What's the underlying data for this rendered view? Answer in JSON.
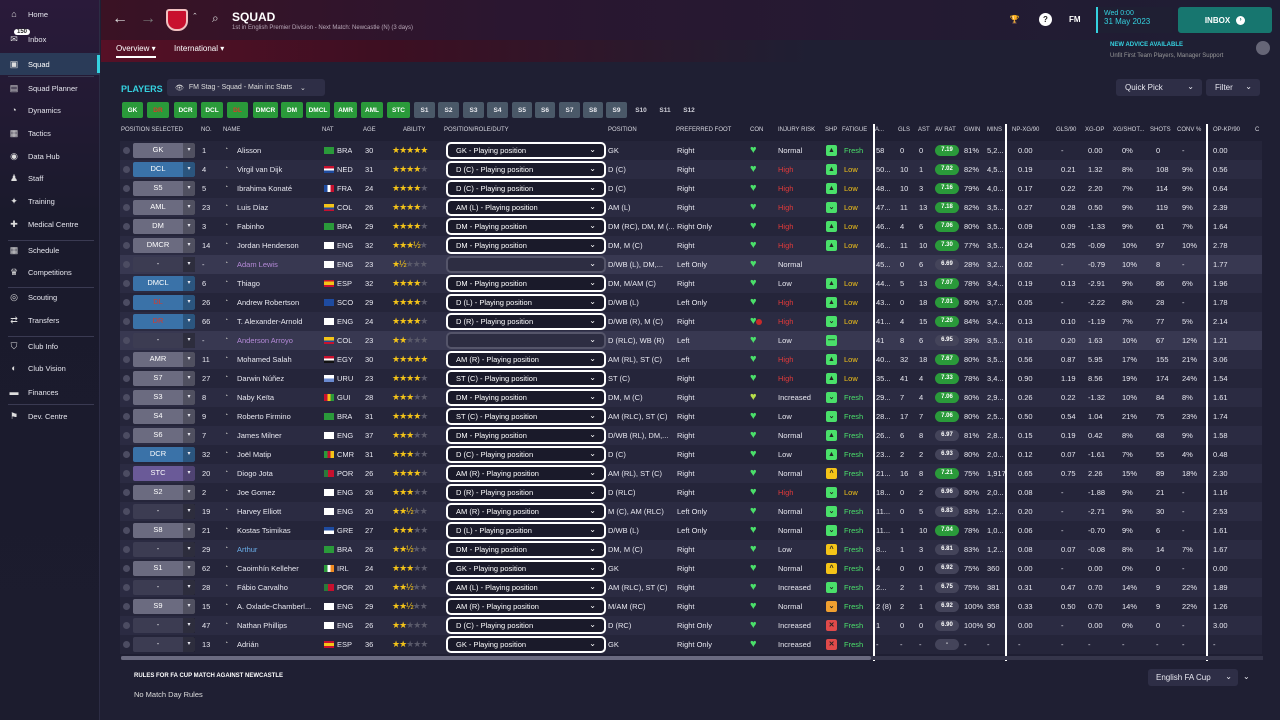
{
  "sidebar": {
    "items": [
      {
        "label": "Home",
        "icon": "home-icon"
      },
      {
        "label": "Inbox",
        "icon": "inbox-icon",
        "badge": "150"
      },
      {
        "label": "Squad",
        "icon": "shirt-icon",
        "active": true
      },
      {
        "label": "Squad Planner",
        "icon": "planner-icon"
      },
      {
        "label": "Dynamics",
        "icon": "dynamics-icon"
      },
      {
        "label": "Tactics",
        "icon": "tactics-icon"
      },
      {
        "label": "Data Hub",
        "icon": "datahub-icon"
      },
      {
        "label": "Staff",
        "icon": "staff-icon"
      },
      {
        "label": "Training",
        "icon": "training-icon"
      },
      {
        "label": "Medical Centre",
        "icon": "medical-icon"
      },
      {
        "label": "Schedule",
        "icon": "calendar-icon"
      },
      {
        "label": "Competitions",
        "icon": "trophy-icon"
      },
      {
        "label": "Scouting",
        "icon": "scouting-icon"
      },
      {
        "label": "Transfers",
        "icon": "transfers-icon"
      },
      {
        "label": "Club Info",
        "icon": "shield-icon"
      },
      {
        "label": "Club Vision",
        "icon": "vision-icon"
      },
      {
        "label": "Finances",
        "icon": "finances-icon"
      },
      {
        "label": "Dev. Centre",
        "icon": "devcentre-icon"
      }
    ]
  },
  "header": {
    "title": "SQUAD",
    "subtitle": "1st in English Premier Division - Next Match: Newcastle (N) (3 days)",
    "date_line1": "Wed 0:00",
    "date_line2": "31 May 2023",
    "inbox_label": "INBOX",
    "fm_label": "FM",
    "advice_title": "NEW ADVICE AVAILABLE",
    "advice_text": "Unfit First Team Players, Manager Support"
  },
  "tabs": [
    {
      "label": "Overview"
    },
    {
      "label": "International"
    }
  ],
  "toolbar": {
    "players_label": "PLAYERS",
    "view_label": "FM Stag - Squad - Main inc Stats",
    "quick_pick": "Quick Pick",
    "filter": "Filter"
  },
  "chips": [
    "GK",
    "DR",
    "DCR",
    "DCL",
    "DL",
    "DMCR",
    "DM",
    "DMCL",
    "AMR",
    "AML",
    "STC",
    "S1",
    "S2",
    "S3",
    "S4",
    "S5",
    "S6",
    "S7",
    "S8",
    "S9",
    "S10",
    "S11",
    "S12"
  ],
  "columns": [
    "POSITION SELECTED",
    "NO.",
    "NAME",
    "NAT",
    "AGE",
    "ABILITY",
    "POSITION/ROLE/DUTY",
    "POSITION",
    "PREFERRED FOOT",
    "CON",
    "INJURY RISK",
    "SHP",
    "FATIGUE",
    "A...",
    "GLS",
    "AST",
    "AV RAT",
    "GWIN",
    "MINS",
    "NP-XG/90",
    "GLS/90",
    "XG-OP",
    "XG/SHOT...",
    "SHOTS",
    "CONV %",
    "OP-KP/90",
    "C"
  ],
  "players": [
    {
      "sel": "GK",
      "no": "1",
      "name": "Alisson",
      "nat": "BRA",
      "age": "30",
      "stars": "★★★★★",
      "empty": "",
      "role": "GK - Playing position",
      "pos": "GK",
      "foot": "Right",
      "risk": "Normal",
      "fatigue": "Fresh",
      "apps": "58",
      "gls": "0",
      "ast": "0",
      "rat": "7.19",
      "gwin": "81%",
      "mins": "5,2...",
      "npxg": "0.00",
      "gls90": "-",
      "xgop": "0.00",
      "xgshot": "0%",
      "shots": "0",
      "conv": "-",
      "opkp": "0.00"
    },
    {
      "sel": "DCL",
      "no": "4",
      "name": "Virgil van Dijk",
      "nat": "NED",
      "age": "31",
      "stars": "★★★★",
      "empty": "★",
      "role": "D (C) - Playing position",
      "pos": "D (C)",
      "foot": "Right",
      "risk": "High",
      "fatigue": "Low",
      "apps": "50...",
      "gls": "10",
      "ast": "1",
      "rat": "7.02",
      "gwin": "82%",
      "mins": "4,5...",
      "npxg": "0.19",
      "gls90": "0.21",
      "xgop": "1.32",
      "xgshot": "8%",
      "shots": "108",
      "conv": "9%",
      "opkp": "0.56"
    },
    {
      "sel": "S5",
      "no": "5",
      "name": "Ibrahima Konaté",
      "nat": "FRA",
      "age": "24",
      "stars": "★★★★",
      "empty": "★",
      "role": "D (C) - Playing position",
      "pos": "D (C)",
      "foot": "Right",
      "risk": "High",
      "fatigue": "Low",
      "apps": "48...",
      "gls": "10",
      "ast": "3",
      "rat": "7.16",
      "gwin": "79%",
      "mins": "4,0...",
      "npxg": "0.17",
      "gls90": "0.22",
      "xgop": "2.20",
      "xgshot": "7%",
      "shots": "114",
      "conv": "9%",
      "opkp": "0.64"
    },
    {
      "sel": "AML",
      "no": "23",
      "name": "Luis Díaz",
      "nat": "COL",
      "age": "26",
      "stars": "★★★★",
      "empty": "★",
      "role": "AM (L) - Playing position",
      "pos": "AM (L)",
      "foot": "Right",
      "risk": "High",
      "fatigue": "Low",
      "apps": "47...",
      "gls": "11",
      "ast": "13",
      "rat": "7.18",
      "gwin": "82%",
      "mins": "3,5...",
      "npxg": "0.27",
      "gls90": "0.28",
      "xgop": "0.50",
      "xgshot": "9%",
      "shots": "119",
      "conv": "9%",
      "opkp": "2.39"
    },
    {
      "sel": "DM",
      "no": "3",
      "name": "Fabinho",
      "nat": "BRA",
      "age": "29",
      "stars": "★★★★",
      "empty": "★",
      "role": "DM - Playing position",
      "pos": "DM (RC), DM, M (...",
      "foot": "Right Only",
      "risk": "High",
      "fatigue": "Low",
      "apps": "46...",
      "gls": "4",
      "ast": "6",
      "rat": "7.06",
      "gwin": "80%",
      "mins": "3,5...",
      "npxg": "0.09",
      "gls90": "0.09",
      "xgop": "-1.33",
      "xgshot": "9%",
      "shots": "61",
      "conv": "7%",
      "opkp": "1.64"
    },
    {
      "sel": "DMCR",
      "no": "14",
      "name": "Jordan Henderson",
      "nat": "ENG",
      "age": "32",
      "stars": "★★★½",
      "empty": "★",
      "role": "DM - Playing position",
      "pos": "DM, M (C)",
      "foot": "Right",
      "risk": "High",
      "fatigue": "Low",
      "apps": "46...",
      "gls": "11",
      "ast": "10",
      "rat": "7.30",
      "gwin": "77%",
      "mins": "3,5...",
      "npxg": "0.24",
      "gls90": "0.25",
      "xgop": "-0.09",
      "xgshot": "10%",
      "shots": "97",
      "conv": "10%",
      "opkp": "2.78"
    },
    {
      "sel": "-",
      "no": "-",
      "name": "Adam Lewis",
      "nat": "ENG",
      "age": "23",
      "stars": "★½",
      "empty": "★★★",
      "role": "",
      "pos": "D/WB (L), DM,...",
      "foot": "Left Only",
      "risk": "Normal",
      "fatigue": "",
      "apps": "45...",
      "gls": "0",
      "ast": "6",
      "rat": "6.69",
      "gwin": "28%",
      "mins": "3,2...",
      "npxg": "0.02",
      "gls90": "-",
      "xgop": "-0.79",
      "xgshot": "10%",
      "shots": "8",
      "conv": "-",
      "opkp": "1.77"
    },
    {
      "sel": "DMCL",
      "no": "6",
      "name": "Thiago",
      "nat": "ESP",
      "age": "32",
      "stars": "★★★★",
      "empty": "★",
      "role": "DM - Playing position",
      "pos": "DM, M/AM (C)",
      "foot": "Right",
      "risk": "Low",
      "fatigue": "Low",
      "apps": "44...",
      "gls": "5",
      "ast": "13",
      "rat": "7.07",
      "gwin": "78%",
      "mins": "3,4...",
      "npxg": "0.19",
      "gls90": "0.13",
      "xgop": "-2.91",
      "xgshot": "9%",
      "shots": "86",
      "conv": "6%",
      "opkp": "1.96"
    },
    {
      "sel": "DL",
      "no": "26",
      "name": "Andrew Robertson",
      "nat": "SCO",
      "age": "29",
      "stars": "★★★★",
      "empty": "★",
      "role": "D (L) - Playing position",
      "pos": "D/WB (L)",
      "foot": "Left Only",
      "risk": "High",
      "fatigue": "Low",
      "apps": "43...",
      "gls": "0",
      "ast": "18",
      "rat": "7.01",
      "gwin": "80%",
      "mins": "3,7...",
      "npxg": "0.05",
      "gls90": "-",
      "xgop": "-2.22",
      "xgshot": "8%",
      "shots": "28",
      "conv": "-",
      "opkp": "1.78"
    },
    {
      "sel": "DR",
      "no": "66",
      "name": "T. Alexander-Arnold",
      "nat": "ENG",
      "age": "24",
      "stars": "★★★★",
      "empty": "★",
      "role": "D (R) - Playing position",
      "pos": "D/WB (R), M (C)",
      "foot": "Right",
      "risk": "High",
      "fatigue": "Low",
      "apps": "41...",
      "gls": "4",
      "ast": "15",
      "rat": "7.20",
      "gwin": "84%",
      "mins": "3,4...",
      "npxg": "0.13",
      "gls90": "0.10",
      "xgop": "-1.19",
      "xgshot": "7%",
      "shots": "77",
      "conv": "5%",
      "opkp": "2.14"
    },
    {
      "sel": "-",
      "no": "-",
      "name": "Anderson Arroyo",
      "nat": "COL",
      "age": "23",
      "stars": "★★",
      "empty": "★★★",
      "role": "",
      "pos": "D (RLC), WB (R)",
      "foot": "Left",
      "risk": "Low",
      "fatigue": "",
      "apps": "41",
      "gls": "8",
      "ast": "6",
      "rat": "6.95",
      "gwin": "39%",
      "mins": "3,5...",
      "npxg": "0.16",
      "gls90": "0.20",
      "xgop": "1.63",
      "xgshot": "10%",
      "shots": "67",
      "conv": "12%",
      "opkp": "1.21"
    },
    {
      "sel": "AMR",
      "no": "11",
      "name": "Mohamed Salah",
      "nat": "EGY",
      "age": "30",
      "stars": "★★★★★",
      "empty": "",
      "role": "AM (R) - Playing position",
      "pos": "AM (RL), ST (C)",
      "foot": "Left",
      "risk": "High",
      "fatigue": "Low",
      "apps": "40...",
      "gls": "32",
      "ast": "18",
      "rat": "7.67",
      "gwin": "80%",
      "mins": "3,5...",
      "npxg": "0.56",
      "gls90": "0.87",
      "xgop": "5.95",
      "xgshot": "17%",
      "shots": "155",
      "conv": "21%",
      "opkp": "3.06"
    },
    {
      "sel": "S7",
      "no": "27",
      "name": "Darwin Núñez",
      "nat": "URU",
      "age": "23",
      "stars": "★★★★",
      "empty": "★",
      "role": "ST (C) - Playing position",
      "pos": "ST (C)",
      "foot": "Right",
      "risk": "High",
      "fatigue": "Low",
      "apps": "35...",
      "gls": "41",
      "ast": "4",
      "rat": "7.33",
      "gwin": "78%",
      "mins": "3,4...",
      "npxg": "0.90",
      "gls90": "1.19",
      "xgop": "8.56",
      "xgshot": "19%",
      "shots": "174",
      "conv": "24%",
      "opkp": "1.54"
    },
    {
      "sel": "S3",
      "no": "8",
      "name": "Naby Keïta",
      "nat": "GUI",
      "age": "28",
      "stars": "★★★",
      "empty": "★★",
      "role": "DM - Playing position",
      "pos": "DM, M (C)",
      "foot": "Right",
      "risk": "Increased",
      "fatigue": "Fresh",
      "apps": "29...",
      "gls": "7",
      "ast": "4",
      "rat": "7.06",
      "gwin": "80%",
      "mins": "2,9...",
      "npxg": "0.26",
      "gls90": "0.22",
      "xgop": "-1.32",
      "xgshot": "10%",
      "shots": "84",
      "conv": "8%",
      "opkp": "1.61"
    },
    {
      "sel": "S4",
      "no": "9",
      "name": "Roberto Firmino",
      "nat": "BRA",
      "age": "31",
      "stars": "★★★★",
      "empty": "★",
      "role": "ST (C) - Playing position",
      "pos": "AM (RLC), ST (C)",
      "foot": "Right",
      "risk": "Low",
      "fatigue": "Fresh",
      "apps": "28...",
      "gls": "17",
      "ast": "7",
      "rat": "7.06",
      "gwin": "80%",
      "mins": "2,5...",
      "npxg": "0.50",
      "gls90": "0.54",
      "xgop": "1.04",
      "xgshot": "21%",
      "shots": "75",
      "conv": "23%",
      "opkp": "1.74"
    },
    {
      "sel": "S6",
      "no": "7",
      "name": "James Milner",
      "nat": "ENG",
      "age": "37",
      "stars": "★★★",
      "empty": "★★",
      "role": "DM - Playing position",
      "pos": "D/WB (RL), DM,...",
      "foot": "Right",
      "risk": "Normal",
      "fatigue": "Fresh",
      "apps": "26...",
      "gls": "6",
      "ast": "8",
      "rat": "6.97",
      "gwin": "81%",
      "mins": "2,8...",
      "npxg": "0.15",
      "gls90": "0.19",
      "xgop": "0.42",
      "xgshot": "8%",
      "shots": "68",
      "conv": "9%",
      "opkp": "1.58"
    },
    {
      "sel": "DCR",
      "no": "32",
      "name": "Joël Matip",
      "nat": "CMR",
      "age": "31",
      "stars": "★★★",
      "empty": "★★",
      "role": "D (C) - Playing position",
      "pos": "D (C)",
      "foot": "Right",
      "risk": "Low",
      "fatigue": "Fresh",
      "apps": "23...",
      "gls": "2",
      "ast": "2",
      "rat": "6.93",
      "gwin": "80%",
      "mins": "2,0...",
      "npxg": "0.12",
      "gls90": "0.07",
      "xgop": "-1.61",
      "xgshot": "7%",
      "shots": "55",
      "conv": "4%",
      "opkp": "0.48"
    },
    {
      "sel": "STC",
      "no": "20",
      "name": "Diogo Jota",
      "nat": "POR",
      "age": "26",
      "stars": "★★★★",
      "empty": "★",
      "role": "AM (R) - Playing position",
      "pos": "AM (RL), ST (C)",
      "foot": "Right",
      "risk": "Normal",
      "fatigue": "Fresh",
      "apps": "21...",
      "gls": "16",
      "ast": "8",
      "rat": "7.21",
      "gwin": "75%",
      "mins": "1,917",
      "npxg": "0.65",
      "gls90": "0.75",
      "xgop": "2.26",
      "xgshot": "15%",
      "shots": "89",
      "conv": "18%",
      "opkp": "2.30"
    },
    {
      "sel": "S2",
      "no": "2",
      "name": "Joe Gomez",
      "nat": "ENG",
      "age": "26",
      "stars": "★★★",
      "empty": "★★",
      "role": "D (R) - Playing position",
      "pos": "D (RLC)",
      "foot": "Right",
      "risk": "High",
      "fatigue": "Low",
      "apps": "18...",
      "gls": "0",
      "ast": "2",
      "rat": "6.96",
      "gwin": "80%",
      "mins": "2,0...",
      "npxg": "0.08",
      "gls90": "-",
      "xgop": "-1.88",
      "xgshot": "9%",
      "shots": "21",
      "conv": "-",
      "opkp": "1.16"
    },
    {
      "sel": "-",
      "no": "19",
      "name": "Harvey Elliott",
      "nat": "ENG",
      "age": "20",
      "stars": "★★½",
      "empty": "★★",
      "role": "AM (R) - Playing position",
      "pos": "M (C), AM (RLC)",
      "foot": "Left Only",
      "risk": "Normal",
      "fatigue": "Fresh",
      "apps": "11...",
      "gls": "0",
      "ast": "5",
      "rat": "6.83",
      "gwin": "83%",
      "mins": "1,2...",
      "npxg": "0.20",
      "gls90": "-",
      "xgop": "-2.71",
      "xgshot": "9%",
      "shots": "30",
      "conv": "-",
      "opkp": "2.53"
    },
    {
      "sel": "S8",
      "no": "21",
      "name": "Kostas Tsimikas",
      "nat": "GRE",
      "age": "27",
      "stars": "★★★",
      "empty": "★★",
      "role": "D (L) - Playing position",
      "pos": "D/WB (L)",
      "foot": "Left Only",
      "risk": "Normal",
      "fatigue": "Fresh",
      "apps": "11...",
      "gls": "1",
      "ast": "10",
      "rat": "7.04",
      "gwin": "78%",
      "mins": "1,0...",
      "npxg": "0.06",
      "gls90": "-",
      "xgop": "-0.70",
      "xgshot": "9%",
      "shots": "6",
      "conv": "-",
      "opkp": "1.61"
    },
    {
      "sel": "-",
      "no": "29",
      "name": "Arthur",
      "nat": "BRA",
      "age": "26",
      "stars": "★★½",
      "empty": "★★",
      "role": "DM - Playing position",
      "pos": "DM, M (C)",
      "foot": "Right",
      "risk": "Low",
      "fatigue": "Fresh",
      "apps": "8...",
      "gls": "1",
      "ast": "3",
      "rat": "6.81",
      "gwin": "83%",
      "mins": "1,2...",
      "npxg": "0.08",
      "gls90": "0.07",
      "xgop": "-0.08",
      "xgshot": "8%",
      "shots": "14",
      "conv": "7%",
      "opkp": "1.67"
    },
    {
      "sel": "S1",
      "no": "62",
      "name": "Caoimhín Kelleher",
      "nat": "IRL",
      "age": "24",
      "stars": "★★★",
      "empty": "★★",
      "role": "GK - Playing position",
      "pos": "GK",
      "foot": "Right",
      "risk": "Normal",
      "fatigue": "Fresh",
      "apps": "4",
      "gls": "0",
      "ast": "0",
      "rat": "6.92",
      "gwin": "75%",
      "mins": "360",
      "npxg": "0.00",
      "gls90": "-",
      "xgop": "0.00",
      "xgshot": "0%",
      "shots": "0",
      "conv": "-",
      "opkp": "0.00"
    },
    {
      "sel": "-",
      "no": "28",
      "name": "Fábio Carvalho",
      "nat": "POR",
      "age": "20",
      "stars": "★★½",
      "empty": "★★",
      "role": "AM (L) - Playing position",
      "pos": "AM (RLC), ST (C)",
      "foot": "Right",
      "risk": "Increased",
      "fatigue": "Fresh",
      "apps": "2...",
      "gls": "2",
      "ast": "1",
      "rat": "6.75",
      "gwin": "75%",
      "mins": "381",
      "npxg": "0.31",
      "gls90": "0.47",
      "xgop": "0.70",
      "xgshot": "14%",
      "shots": "9",
      "conv": "22%",
      "opkp": "1.89"
    },
    {
      "sel": "S9",
      "no": "15",
      "name": "A. Oxlade-Chamberl...",
      "nat": "ENG",
      "age": "29",
      "stars": "★★½",
      "empty": "★★",
      "role": "AM (R) - Playing position",
      "pos": "M/AM (RC)",
      "foot": "Right",
      "risk": "Normal",
      "fatigue": "Fresh",
      "apps": "2 (8)",
      "gls": "2",
      "ast": "1",
      "rat": "6.92",
      "gwin": "100%",
      "mins": "358",
      "npxg": "0.33",
      "gls90": "0.50",
      "xgop": "0.70",
      "xgshot": "14%",
      "shots": "9",
      "conv": "22%",
      "opkp": "1.26"
    },
    {
      "sel": "-",
      "no": "47",
      "name": "Nathan Phillips",
      "nat": "ENG",
      "age": "26",
      "stars": "★★",
      "empty": "★★★",
      "role": "D (C) - Playing position",
      "pos": "D (RC)",
      "foot": "Right Only",
      "risk": "Increased",
      "fatigue": "Fresh",
      "apps": "1",
      "gls": "0",
      "ast": "0",
      "rat": "6.90",
      "gwin": "100%",
      "mins": "90",
      "npxg": "0.00",
      "gls90": "-",
      "xgop": "0.00",
      "xgshot": "0%",
      "shots": "0",
      "conv": "-",
      "opkp": "3.00"
    },
    {
      "sel": "-",
      "no": "13",
      "name": "Adrián",
      "nat": "ESP",
      "age": "36",
      "stars": "★★",
      "empty": "★★★",
      "role": "GK - Playing position",
      "pos": "GK",
      "foot": "Right Only",
      "risk": "Increased",
      "fatigue": "Fresh",
      "apps": "-",
      "gls": "-",
      "ast": "-",
      "rat": "-",
      "gwin": "-",
      "mins": "-",
      "npxg": "-",
      "gls90": "-",
      "xgop": "-",
      "xgshot": "-",
      "shots": "-",
      "conv": "-",
      "opkp": "-"
    }
  ],
  "footer": {
    "rules_title": "RULES FOR FA CUP MATCH AGAINST NEWCASTLE",
    "rules_value": "No Match Day Rules",
    "cup_select": "English FA Cup"
  },
  "colors": {
    "accent": "#35d2e0",
    "high_risk": "#e03a3a",
    "rating_green": "#2a9a3a",
    "inbox": "#17766f"
  }
}
